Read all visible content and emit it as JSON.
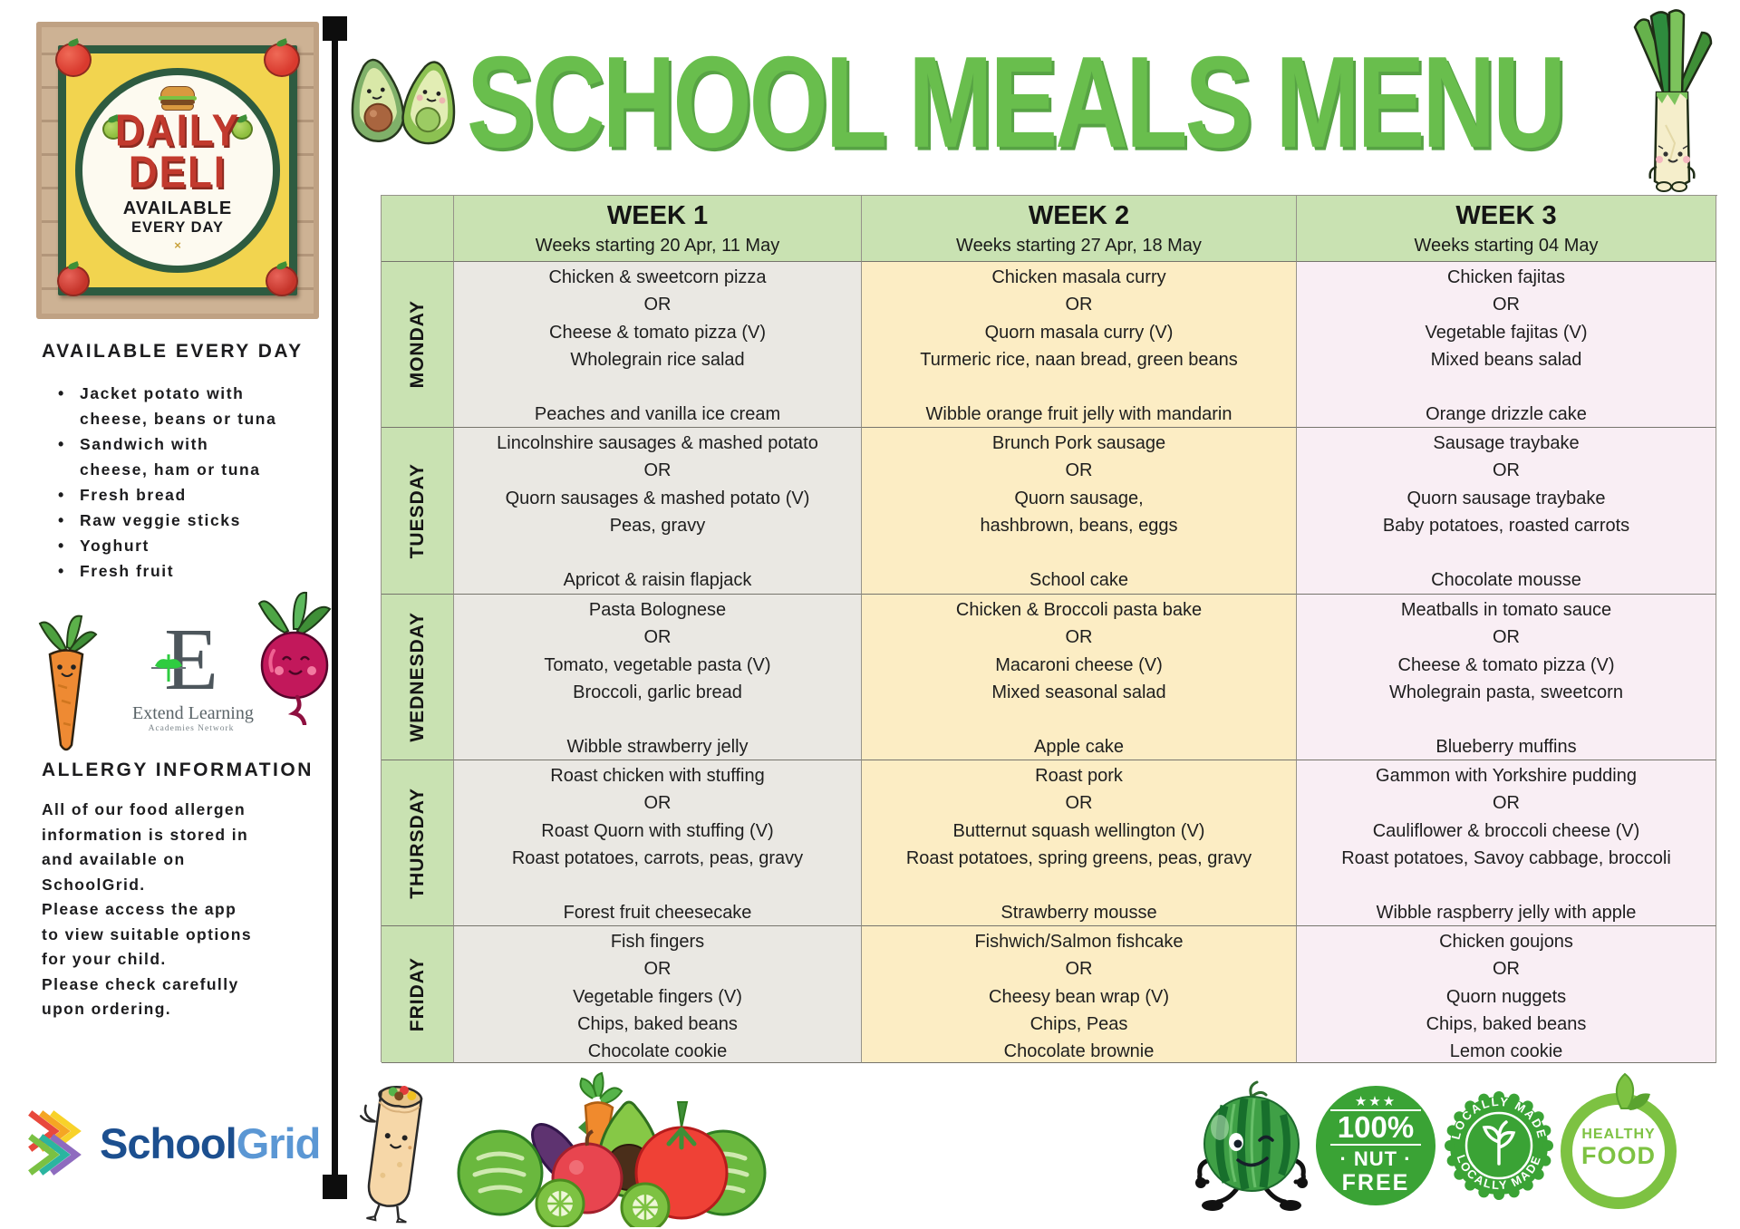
{
  "title": "SCHOOL MEALS MENU",
  "sidebar": {
    "poster": {
      "line1": "DAILY",
      "line2": "DELI",
      "sub1": "AVAILABLE",
      "sub2": "EVERY DAY",
      "x_mark": "×"
    },
    "available_heading": "AVAILABLE EVERY DAY",
    "available_items": [
      [
        "Jacket potato with",
        "cheese, beans or tuna"
      ],
      [
        "Sandwich with",
        "cheese, ham or tuna"
      ],
      [
        "Fresh bread"
      ],
      [
        "Raw veggie sticks"
      ],
      [
        "Yoghurt"
      ],
      [
        "Fresh fruit"
      ]
    ],
    "network_logo": {
      "letter": "E",
      "name": "Extend Learning",
      "subname": "Academies Network"
    },
    "allergy_heading": "ALLERGY INFORMATION",
    "allergy_lines": [
      "All of our food allergen",
      "information is stored in",
      "and available on",
      "SchoolGrid.",
      "Please access the app",
      "to view suitable options",
      "for your child.",
      "Please check carefully",
      "upon ordering."
    ],
    "schoolgrid_logo": {
      "part1": "School",
      "part2": "Grid"
    }
  },
  "table": {
    "weeks": [
      {
        "label": "WEEK 1",
        "subtitle": "Weeks starting 20 Apr, 11 May"
      },
      {
        "label": "WEEK 2",
        "subtitle": "Weeks starting 27 Apr, 18 May"
      },
      {
        "label": "WEEK 3",
        "subtitle": "Weeks starting 04 May"
      }
    ],
    "rows": [
      {
        "day": "MONDAY",
        "cells": [
          [
            "Chicken & sweetcorn pizza",
            "OR",
            "Cheese & tomato pizza (V)",
            "Wholegrain rice salad",
            "",
            "Peaches and vanilla ice cream"
          ],
          [
            "Chicken masala curry",
            "OR",
            "Quorn masala curry (V)",
            "Turmeric rice, naan bread, green beans",
            "",
            "Wibble orange fruit jelly with mandarin"
          ],
          [
            "Chicken fajitas",
            "OR",
            "Vegetable fajitas (V)",
            "Mixed beans salad",
            "",
            "Orange drizzle cake"
          ]
        ]
      },
      {
        "day": "TUESDAY",
        "cells": [
          [
            "Lincolnshire sausages & mashed potato",
            "OR",
            "Quorn sausages & mashed potato (V)",
            "Peas, gravy",
            "",
            "Apricot & raisin flapjack"
          ],
          [
            "Brunch Pork sausage",
            "OR",
            "Quorn sausage,",
            "hashbrown, beans, eggs",
            "",
            "School cake"
          ],
          [
            "Sausage traybake",
            "OR",
            "Quorn sausage traybake",
            "Baby potatoes, roasted carrots",
            "",
            "Chocolate mousse"
          ]
        ]
      },
      {
        "day": "WEDNESDAY",
        "cells": [
          [
            "Pasta Bolognese",
            "OR",
            "Tomato, vegetable pasta (V)",
            "Broccoli, garlic bread",
            "",
            "Wibble strawberry jelly"
          ],
          [
            "Chicken & Broccoli pasta bake",
            "OR",
            "Macaroni cheese (V)",
            "Mixed seasonal salad",
            "",
            "Apple cake"
          ],
          [
            "Meatballs in tomato sauce",
            "OR",
            "Cheese & tomato pizza (V)",
            "Wholegrain pasta, sweetcorn",
            "",
            "Blueberry muffins"
          ]
        ]
      },
      {
        "day": "THURSDAY",
        "cells": [
          [
            "Roast chicken with stuffing",
            "OR",
            "Roast Quorn with stuffing (V)",
            "Roast potatoes, carrots, peas, gravy",
            "",
            "Forest fruit cheesecake"
          ],
          [
            "Roast pork",
            "OR",
            "Butternut squash wellington (V)",
            "Roast potatoes, spring greens, peas, gravy",
            "",
            "Strawberry mousse"
          ],
          [
            "Gammon with Yorkshire pudding",
            "OR",
            "Cauliflower & broccoli cheese (V)",
            "Roast potatoes, Savoy cabbage, broccoli",
            "",
            "Wibble raspberry jelly with apple"
          ]
        ]
      },
      {
        "day": "FRIDAY",
        "cells": [
          [
            "Fish fingers",
            "OR",
            "Vegetable fingers (V)",
            "Chips, baked beans",
            "Chocolate cookie"
          ],
          [
            "Fishwich/Salmon fishcake",
            "OR",
            "Cheesy bean wrap (V)",
            "Chips, Peas",
            "Chocolate brownie"
          ],
          [
            "Chicken goujons",
            "OR",
            "Quorn nuggets",
            "Chips, baked beans",
            "Lemon cookie"
          ]
        ]
      }
    ]
  },
  "badges": {
    "nut_free": {
      "stars": "★★★",
      "line1": "100%",
      "line2": "· NUT ·",
      "line3": "FREE"
    },
    "locally_made": {
      "arc_top": "LOCALLY MADE",
      "arc_bottom": "LOCALLY MADE"
    },
    "healthy_food": {
      "line1": "HEALTHY",
      "line2": "FOOD"
    }
  },
  "icons": {
    "avocado_pair": "two cartoon avocados",
    "leek_character": "cartoon leek / spring onion",
    "carrot_character": "cartoon carrot",
    "beetroot_character": "cartoon beetroot",
    "burrito_character": "cartoon wrap / burrito",
    "vegetable_pile": "lettuce, eggplant, carrot, avocado, apple, tomato, kiwi",
    "watermelon_character": "winking watermelon",
    "burger": "hamburger",
    "schoolgrid_chevrons": "rainbow double chevron",
    "extend_sprout": "green sprout glyph"
  },
  "colors": {
    "title_green": "#69be4d",
    "header_green": "#c9e2b2",
    "week1_bg": "#eae8e3",
    "week2_bg": "#fcedc4",
    "week3_bg": "#f9eef4",
    "deli_red": "#c23a2e",
    "badge_green": "#3aa335",
    "healthy_green": "#7dc242",
    "schoolgrid_blue": "#1c4f8f",
    "schoolgrid_light_blue": "#5b97d4"
  }
}
